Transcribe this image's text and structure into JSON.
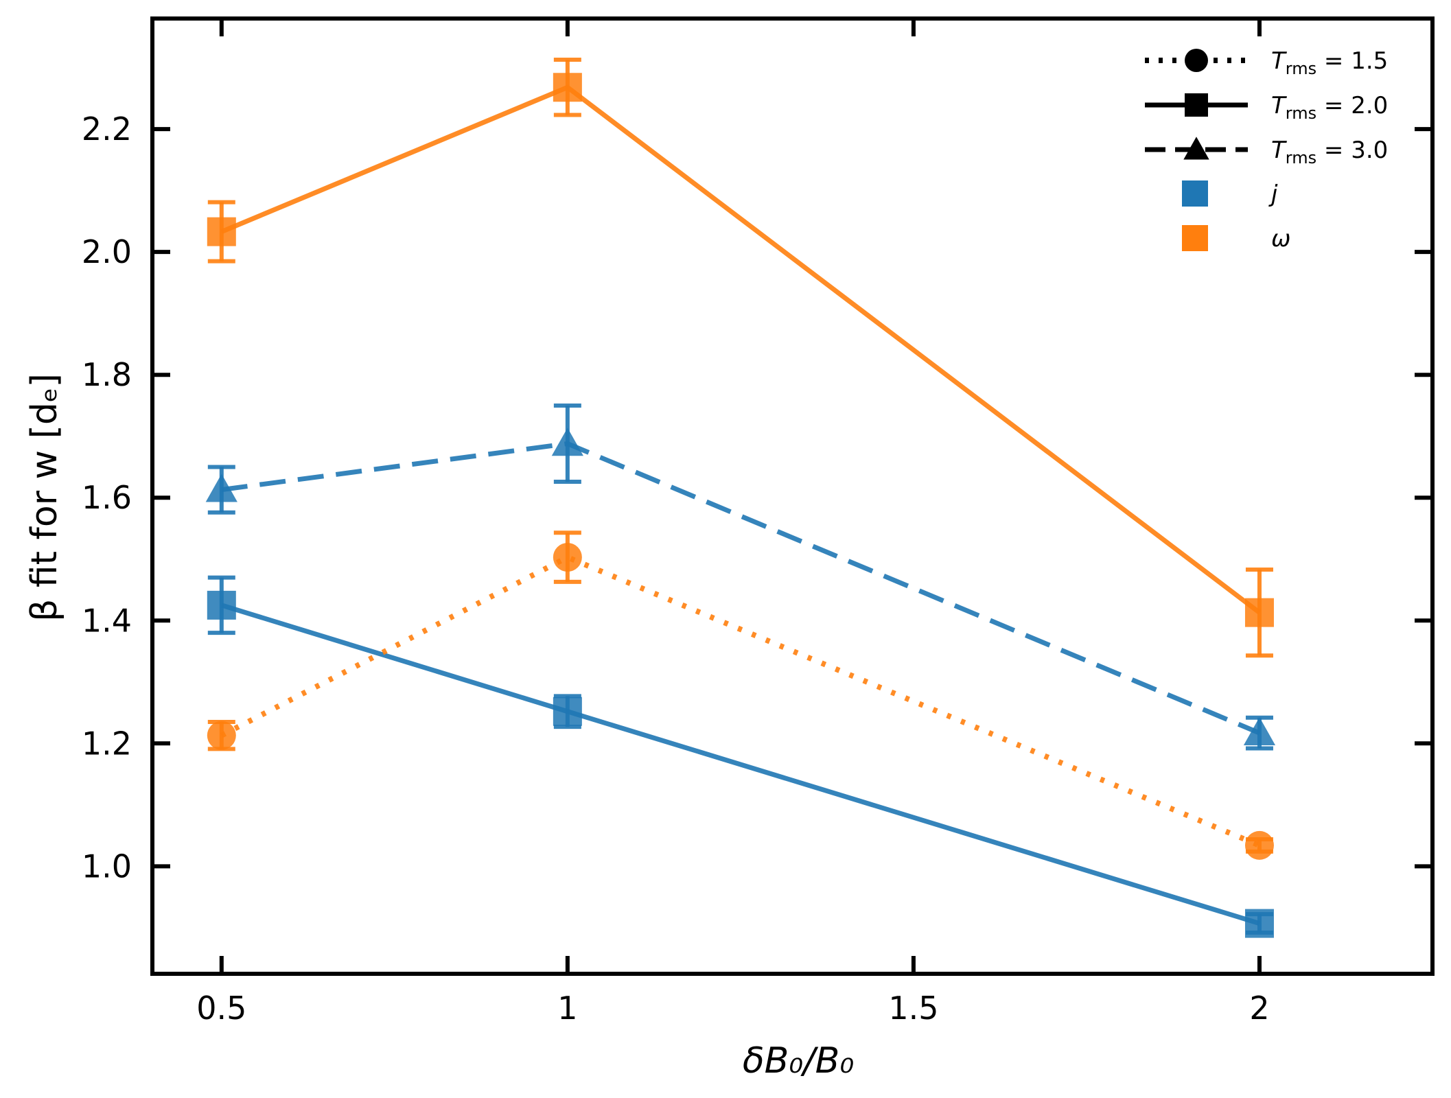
{
  "chart_data": {
    "type": "line",
    "title": "",
    "xlabel": "δB₀/B₀",
    "ylabel": "β fit for w [dₑ]",
    "xlim": [
      0.4,
      2.25
    ],
    "ylim": [
      0.825,
      2.38
    ],
    "x_ticks": [
      {
        "value": 0.5,
        "label": "0.5"
      },
      {
        "value": 1.0,
        "label": "1"
      },
      {
        "value": 1.5,
        "label": "1.5"
      },
      {
        "value": 2.0,
        "label": "2"
      }
    ],
    "y_ticks": [
      {
        "value": 1.0,
        "label": "1.0"
      },
      {
        "value": 1.2,
        "label": "1.2"
      },
      {
        "value": 1.4,
        "label": "1.4"
      },
      {
        "value": 1.6,
        "label": "1.6"
      },
      {
        "value": 1.8,
        "label": "1.8"
      },
      {
        "value": 2.0,
        "label": "2.0"
      },
      {
        "value": 2.2,
        "label": "2.2"
      }
    ],
    "grid": false,
    "legend_position": "top-right",
    "legend": {
      "styles": [
        {
          "label_var": "T",
          "label_sub": "rms",
          "label_val": " = 1.5",
          "marker": "circle",
          "line": "dotted"
        },
        {
          "label_var": "T",
          "label_sub": "rms",
          "label_val": " = 2.0",
          "marker": "square",
          "line": "solid"
        },
        {
          "label_var": "T",
          "label_sub": "rms",
          "label_val": " = 3.0",
          "marker": "triangle",
          "line": "dashed"
        }
      ],
      "colors": [
        {
          "label": "j",
          "color": "#1f77b4"
        },
        {
          "label": "ω",
          "color": "#ff7f0e"
        }
      ]
    },
    "series": [
      {
        "name": "j, Trms = 2.0",
        "color": "#1f77b4",
        "marker": "square",
        "line": "solid",
        "x": [
          0.5,
          1.0,
          2.0
        ],
        "y": [
          1.425,
          1.252,
          0.907
        ],
        "err": [
          0.045,
          0.025,
          0.015
        ]
      },
      {
        "name": "j, Trms = 3.0",
        "color": "#1f77b4",
        "marker": "triangle",
        "line": "dashed",
        "x": [
          0.5,
          1.0,
          2.0
        ],
        "y": [
          1.613,
          1.688,
          1.217
        ],
        "err": [
          0.037,
          0.062,
          0.025
        ]
      },
      {
        "name": "ω, Trms = 1.5",
        "color": "#ff7f0e",
        "marker": "circle",
        "line": "dotted",
        "x": [
          0.5,
          1.0,
          2.0
        ],
        "y": [
          1.213,
          1.503,
          1.034
        ],
        "err": [
          0.022,
          0.04,
          0.01
        ]
      },
      {
        "name": "ω, Trms = 2.0",
        "color": "#ff7f0e",
        "marker": "square",
        "line": "solid",
        "x": [
          0.5,
          1.0,
          2.0
        ],
        "y": [
          2.033,
          2.268,
          1.413
        ],
        "err": [
          0.048,
          0.045,
          0.07
        ]
      }
    ]
  }
}
